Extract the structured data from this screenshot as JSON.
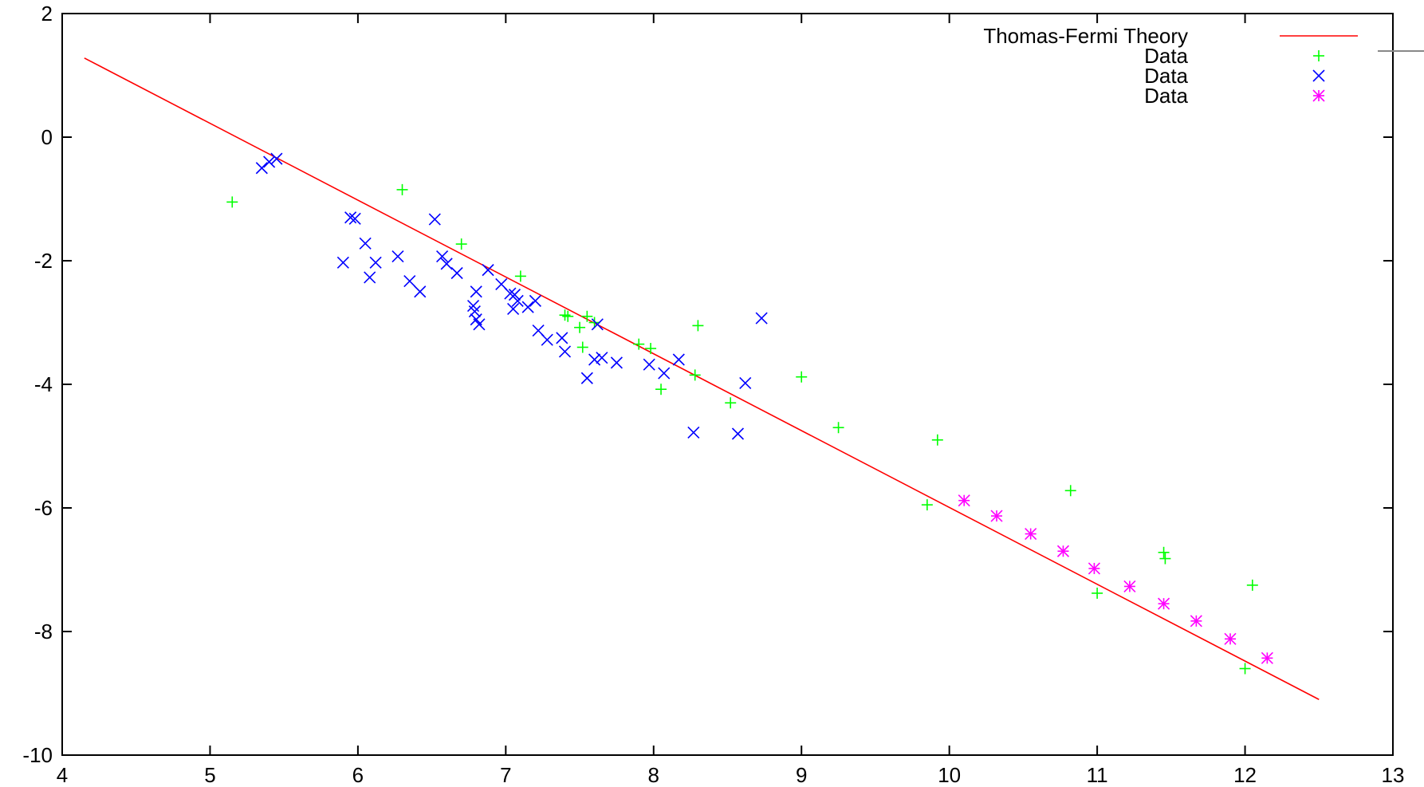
{
  "chart_data": {
    "type": "scatter",
    "title": "",
    "xlabel": "",
    "ylabel": "",
    "xlim": [
      4,
      13
    ],
    "ylim": [
      -10,
      2
    ],
    "x_ticks": [
      4,
      5,
      6,
      7,
      8,
      9,
      10,
      11,
      12,
      13
    ],
    "y_ticks": [
      -10,
      -8,
      -6,
      -4,
      -2,
      0,
      2
    ],
    "grid": false,
    "legend_position": "top-right",
    "series": [
      {
        "name": "Thomas-Fermi Theory",
        "kind": "line",
        "color": "#ff0000",
        "points": [
          [
            4.15,
            1.28
          ],
          [
            12.5,
            -9.1
          ]
        ]
      },
      {
        "name": "Data",
        "kind": "points",
        "marker": "plus",
        "color": "#00ff00",
        "points": [
          [
            5.15,
            -1.05
          ],
          [
            6.3,
            -0.85
          ],
          [
            6.7,
            -1.73
          ],
          [
            7.1,
            -2.25
          ],
          [
            7.4,
            -2.88
          ],
          [
            7.42,
            -2.9
          ],
          [
            7.5,
            -3.08
          ],
          [
            7.55,
            -2.9
          ],
          [
            7.6,
            -3.0
          ],
          [
            7.52,
            -3.4
          ],
          [
            7.9,
            -3.35
          ],
          [
            7.98,
            -3.42
          ],
          [
            8.05,
            -4.08
          ],
          [
            8.28,
            -3.85
          ],
          [
            8.3,
            -3.05
          ],
          [
            8.52,
            -4.3
          ],
          [
            9.0,
            -3.88
          ],
          [
            9.25,
            -4.7
          ],
          [
            9.85,
            -5.95
          ],
          [
            9.92,
            -4.9
          ],
          [
            10.82,
            -5.72
          ],
          [
            11.0,
            -7.38
          ],
          [
            11.45,
            -6.72
          ],
          [
            11.46,
            -6.82
          ],
          [
            12.0,
            -8.6
          ],
          [
            12.05,
            -7.25
          ]
        ]
      },
      {
        "name": "Data",
        "kind": "points",
        "marker": "cross",
        "color": "#0000ff",
        "points": [
          [
            5.35,
            -0.5
          ],
          [
            5.4,
            -0.4
          ],
          [
            5.45,
            -0.35
          ],
          [
            5.9,
            -2.03
          ],
          [
            5.95,
            -1.3
          ],
          [
            5.98,
            -1.32
          ],
          [
            6.05,
            -1.72
          ],
          [
            6.08,
            -2.27
          ],
          [
            6.12,
            -2.03
          ],
          [
            6.27,
            -1.93
          ],
          [
            6.35,
            -2.33
          ],
          [
            6.42,
            -2.5
          ],
          [
            6.52,
            -1.33
          ],
          [
            6.57,
            -1.93
          ],
          [
            6.6,
            -2.05
          ],
          [
            6.67,
            -2.2
          ],
          [
            6.78,
            -2.73
          ],
          [
            6.79,
            -2.82
          ],
          [
            6.8,
            -2.95
          ],
          [
            6.8,
            -2.5
          ],
          [
            6.82,
            -3.03
          ],
          [
            6.88,
            -2.15
          ],
          [
            6.97,
            -2.38
          ],
          [
            7.03,
            -2.53
          ],
          [
            7.05,
            -2.78
          ],
          [
            7.06,
            -2.55
          ],
          [
            7.08,
            -2.65
          ],
          [
            7.15,
            -2.75
          ],
          [
            7.2,
            -2.65
          ],
          [
            7.22,
            -3.13
          ],
          [
            7.28,
            -3.28
          ],
          [
            7.38,
            -3.25
          ],
          [
            7.4,
            -3.47
          ],
          [
            7.55,
            -3.9
          ],
          [
            7.6,
            -3.6
          ],
          [
            7.62,
            -3.03
          ],
          [
            7.65,
            -3.57
          ],
          [
            7.75,
            -3.65
          ],
          [
            7.97,
            -3.68
          ],
          [
            8.07,
            -3.82
          ],
          [
            8.17,
            -3.6
          ],
          [
            8.27,
            -4.78
          ],
          [
            8.57,
            -4.8
          ],
          [
            8.62,
            -3.98
          ],
          [
            8.73,
            -2.93
          ]
        ]
      },
      {
        "name": "Data",
        "kind": "points",
        "marker": "star",
        "color": "#ff00ff",
        "points": [
          [
            10.1,
            -5.88
          ],
          [
            10.32,
            -6.13
          ],
          [
            10.55,
            -6.42
          ],
          [
            10.77,
            -6.7
          ],
          [
            10.98,
            -6.98
          ],
          [
            11.22,
            -7.27
          ],
          [
            11.45,
            -7.55
          ],
          [
            11.67,
            -7.83
          ],
          [
            11.9,
            -8.12
          ],
          [
            12.15,
            -8.43
          ]
        ]
      }
    ]
  }
}
